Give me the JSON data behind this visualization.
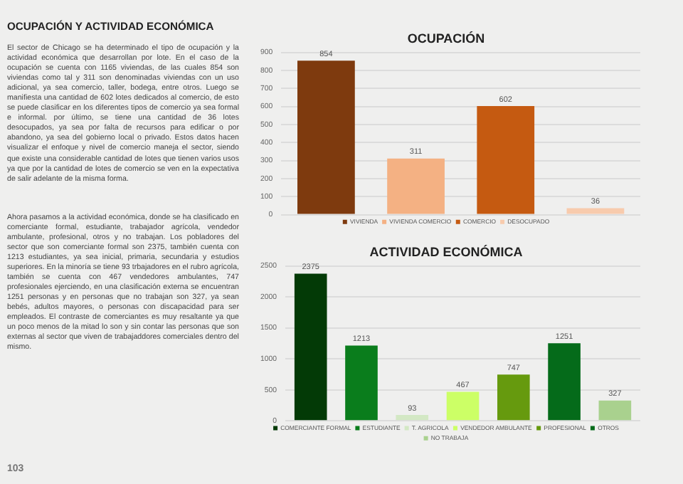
{
  "chart_data": [
    {
      "type": "other",
      "title": "OCUPACIÓN Y ACTIVIDAD ECONÓMICA",
      "annotations": [
        "El sector de Chicago se ha determinado el tipo de ocupación y la actividad económica que desarrollan por lote. En el caso de la ocupación se cuenta con 1165 viviendas, de las cuales 854 son viviendas como tal y 311 son denominadas viviendas con un uso adicional, ya sea comercio, taller, bodega, entre otros. Luego se manifiesta una cantidad de 602 lotes dedicados al comercio, de esto se puede clasificar en los diferentes tipos de comercio ya sea formal e informal. por último, se tiene una cantidad de 36 lotes desocupados, ya sea por falta de recursos para edificar o por abandono, ya sea del gobierno local o privado. Estos datos hacen visualizar el enfoque y nivel de comercio maneja el sector, siendo que existe una considerable cantidad de lotes que tienen varios usos ya que por la cantidad de lotes de comercio se ven en la expectativa de salir adelante de la misma forma.",
        "Ahora pasamos a la actividad económica, donde se ha clasificado en comerciante formal, estudiante, trabajador agrícola, vendedor ambulante, profesional, otros y no trabajan. Los pobladores del sector que son comerciante formal son 2375, también cuenta con 1213 estudiantes, ya sea inicial, primaria, secundaria y estudios superiores. En la minoría se tiene 93 trbajadores en el rubro agrícola, también se cuenta con 467 vendedores ambulantes, 747 profesionales ejerciendo, en una clasificación externa se encuentran 1251 personas y en personas que no trabajan son 327, ya sean bebés, adultos mayores, o personas con discapacidad para ser empleados. El contraste de comerciantes es muy resaltante ya que un poco menos de la mitad lo son y sin contar las personas que son externas al sector que viven de trabajaddores comerciales dentro del mismo.",
        "103"
      ]
    },
    {
      "type": "bar",
      "title": "OCUPACIÓN",
      "categories": [
        null,
        null,
        null,
        null
      ],
      "series": [
        {
          "name": "VIVIENDA",
          "color": "#7e3a0e",
          "values": [
            854,
            null,
            null,
            null
          ]
        },
        {
          "name": "VIVIENDA COMERCIO",
          "color": "#f4b183",
          "values": [
            null,
            311,
            null,
            null
          ]
        },
        {
          "name": "COMERCIO",
          "color": "#c55a11",
          "values": [
            null,
            null,
            602,
            null
          ]
        },
        {
          "name": "DESOCUPADO",
          "color": "#f8cbad",
          "values": [
            null,
            null,
            null,
            36
          ]
        }
      ],
      "ylim": [
        0,
        900
      ],
      "yticks": [
        0,
        100,
        200,
        300,
        400,
        500,
        600,
        700,
        800,
        900
      ],
      "grid": "y",
      "legend": "bottom",
      "data_labels": true
    },
    {
      "type": "bar",
      "title": "ACTIVIDAD ECONÓMICA",
      "categories": [
        null,
        null,
        null,
        null,
        null,
        null,
        null
      ],
      "series": [
        {
          "name": "COMERCIANTE FORMAL",
          "color": "#033a06",
          "values": [
            2375,
            null,
            null,
            null,
            null,
            null,
            null
          ]
        },
        {
          "name": "ESTUDIANTE",
          "color": "#0a7d1c",
          "values": [
            null,
            1213,
            null,
            null,
            null,
            null,
            null
          ]
        },
        {
          "name": "T. AGRICOLA",
          "color": "#d3e8c4",
          "values": [
            null,
            null,
            93,
            null,
            null,
            null,
            null
          ]
        },
        {
          "name": "VENDEDOR AMBULANTE",
          "color": "#ccff66",
          "values": [
            null,
            null,
            null,
            467,
            null,
            null,
            null
          ]
        },
        {
          "name": "PROFESIONAL",
          "color": "#669a0e",
          "values": [
            null,
            null,
            null,
            null,
            747,
            null,
            null
          ]
        },
        {
          "name": "OTROS",
          "color": "#056b1a",
          "values": [
            null,
            null,
            null,
            null,
            null,
            1251,
            null
          ]
        },
        {
          "name": "NO TRABAJA",
          "color": "#a9d18e",
          "values": [
            null,
            null,
            null,
            null,
            null,
            null,
            327
          ]
        }
      ],
      "ylim": [
        0,
        2500
      ],
      "yticks": [
        0,
        500,
        1000,
        1500,
        2000,
        2500
      ],
      "grid": "y",
      "legend": "bottom",
      "data_labels": true
    }
  ]
}
